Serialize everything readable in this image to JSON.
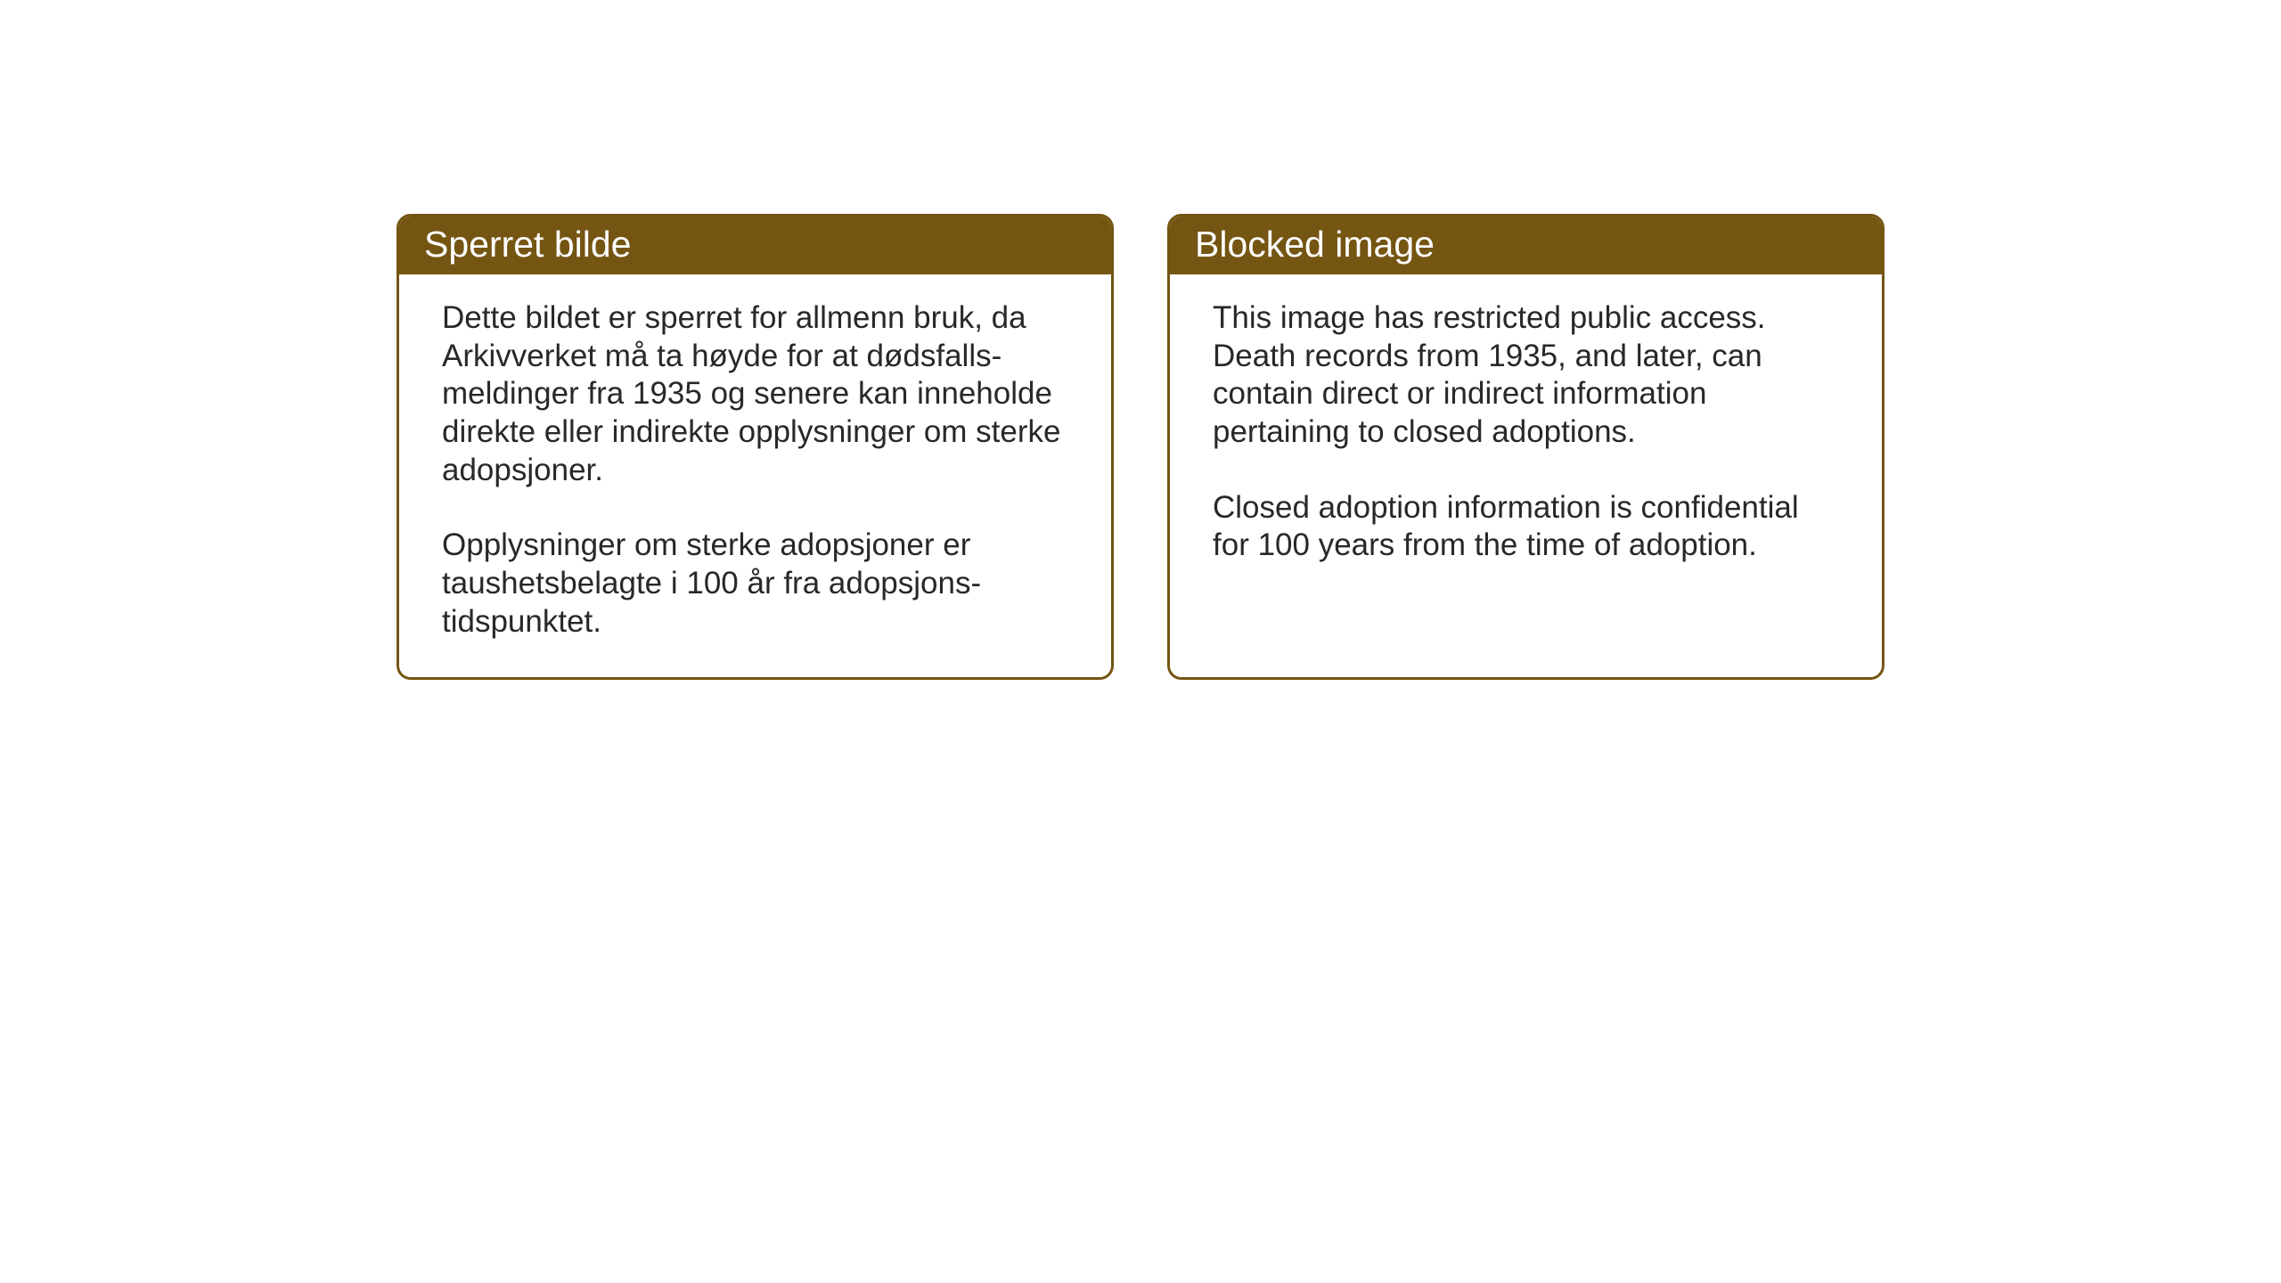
{
  "layout": {
    "background_color": "#ffffff",
    "card_border_color": "#745512",
    "card_header_bg": "#745512",
    "card_header_text_color": "#ffffff",
    "body_text_color": "#282828",
    "header_fontsize": 41,
    "body_fontsize": 35,
    "border_radius": 16,
    "border_width": 3,
    "gap": 60
  },
  "cards": {
    "norwegian": {
      "title": "Sperret bilde",
      "paragraph1": "Dette bildet er sperret for allmenn bruk, da Arkivverket må ta høyde for at dødsfalls-meldinger fra 1935 og senere kan inneholde direkte eller indirekte opplysninger om sterke adopsjoner.",
      "paragraph2": "Opplysninger om sterke adopsjoner er taushetsbelagte i 100 år fra adopsjons-tidspunktet."
    },
    "english": {
      "title": "Blocked image",
      "paragraph1": "This image has restricted public access. Death records from 1935, and later, can contain direct or indirect information pertaining to closed adoptions.",
      "paragraph2": "Closed adoption information is confidential for 100 years from the time of adoption."
    }
  }
}
